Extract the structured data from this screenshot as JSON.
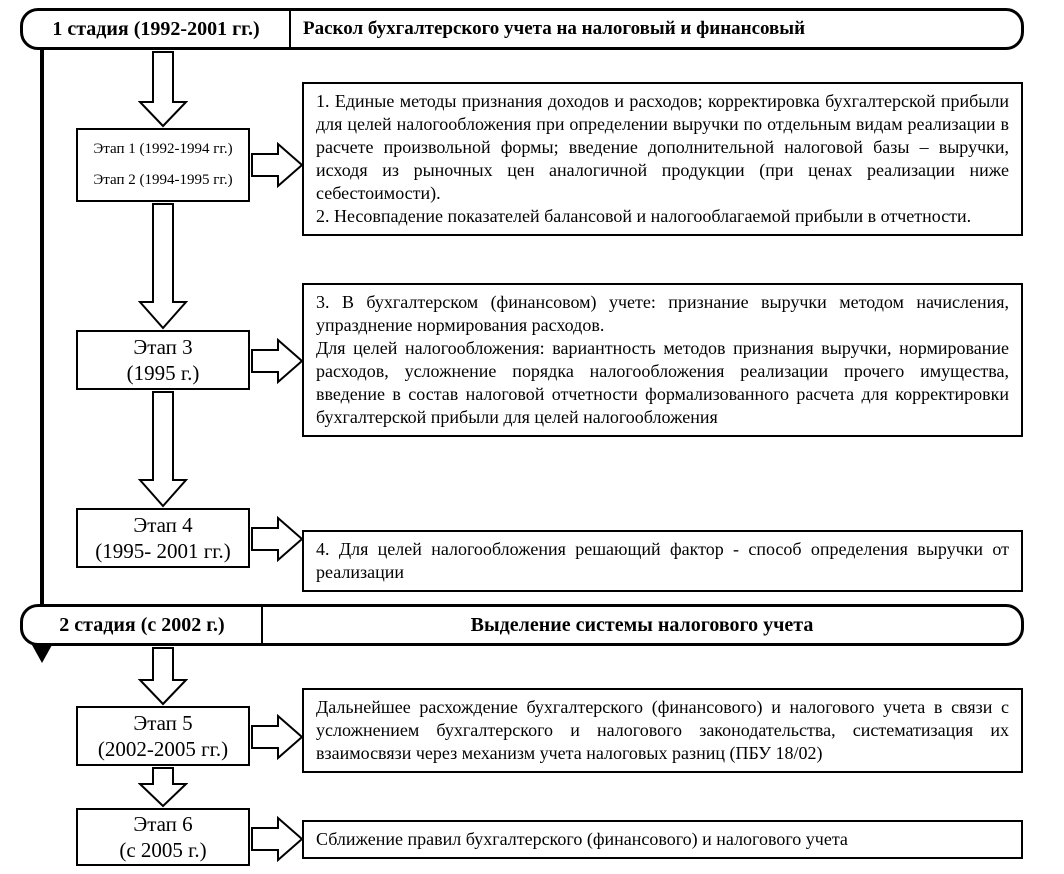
{
  "diagram": {
    "type": "flowchart",
    "background_color": "#ffffff",
    "text_color": "#000000",
    "border_color": "#000000",
    "font_family": "Times New Roman",
    "stages": [
      {
        "id": "stage1",
        "label": "1 стадия (1992-2001 гг.)",
        "title": "Раскол бухгалтерского учета на налоговый и финансовый",
        "border_width": 3,
        "border_radius": 18,
        "font_weight": "bold",
        "label_fontsize": 20,
        "title_fontsize": 19
      },
      {
        "id": "stage2",
        "label": "2 стадия (с 2002 г.)",
        "title": "Выделение системы налогового учета",
        "border_width": 3,
        "border_radius": 18,
        "font_weight": "bold",
        "label_fontsize": 20,
        "title_fontsize": 20
      }
    ],
    "etaps": [
      {
        "id": "etap1_2",
        "lines": [
          "Этап 1 (1992-1994 гг.)",
          "Этап 2  (1994-1995 гг.)"
        ],
        "fontsize": 15,
        "border_width": 2
      },
      {
        "id": "etap3",
        "lines": [
          "Этап 3",
          "(1995 г.)"
        ],
        "fontsize": 21,
        "border_width": 2
      },
      {
        "id": "etap4",
        "lines": [
          "Этап 4",
          "(1995- 2001 гг.)"
        ],
        "fontsize": 21,
        "border_width": 2
      },
      {
        "id": "etap5",
        "lines": [
          "Этап 5",
          "(2002-2005 гг.)"
        ],
        "fontsize": 21,
        "border_width": 2
      },
      {
        "id": "etap6",
        "lines": [
          "Этап 6",
          "(с 2005 г.)"
        ],
        "fontsize": 21,
        "border_width": 2
      }
    ],
    "descriptions": [
      {
        "id": "desc1",
        "text": "1. Единые методы признания доходов и расходов; корректировка бухгалтер­ской прибыли для целей налогообложения при определении выручки по отдельным видам реализации в расчете произвольной формы; введение до­полнительной налоговой базы – выручки, исходя из рыночных цен анало­гичной продукции (при ценах реализации ниже себестоимости).\n2. Несовпадение показателей балансовой и налогооблагаемой прибыли в отчетности.",
        "fontsize": 18,
        "border_width": 2
      },
      {
        "id": "desc3",
        "text": "3. В бухгалтерском (финансовом) учете: признание выручки методом на­числения, упразднение нормирования расходов.\nДля целей налогообложения: вариантность методов признания выручки, нормирование расходов, усложнение порядка налогообложения реализации прочего имущества, введение в состав налоговой отчетности формализо­ванного расчета для корректировки бухгалтерской прибыли для целей нало­гообложения",
        "fontsize": 18,
        "border_width": 2
      },
      {
        "id": "desc4",
        "text": "4. Для целей налогообложения решающий фактор - способ определения вы­ручки от реализации",
        "fontsize": 18,
        "border_width": 2
      },
      {
        "id": "desc5",
        "text": "Дальнейшее расхождение бухгалтерского (финансового) и налогового учета в связи с усложнением бухгалтерского и налогового законодательства, сис­тематизация их взаимосвязи через механизм учета налоговых разниц (ПБУ 18/02)",
        "fontsize": 18,
        "border_width": 2
      },
      {
        "id": "desc6",
        "text": "Сближение правил  бухгалтерского (финансового) и налогового учета",
        "fontsize": 18,
        "border_width": 2
      }
    ],
    "arrows": {
      "down_arrow_outline_color": "#000000",
      "down_arrow_fill_color": "#ffffff",
      "down_arrow_stroke_width": 2,
      "right_arrow_outline_color": "#000000",
      "right_arrow_fill_color": "#ffffff",
      "right_arrow_stroke_width": 2,
      "timeline_arrow_color": "#000000",
      "timeline_arrow_width": 4
    }
  }
}
